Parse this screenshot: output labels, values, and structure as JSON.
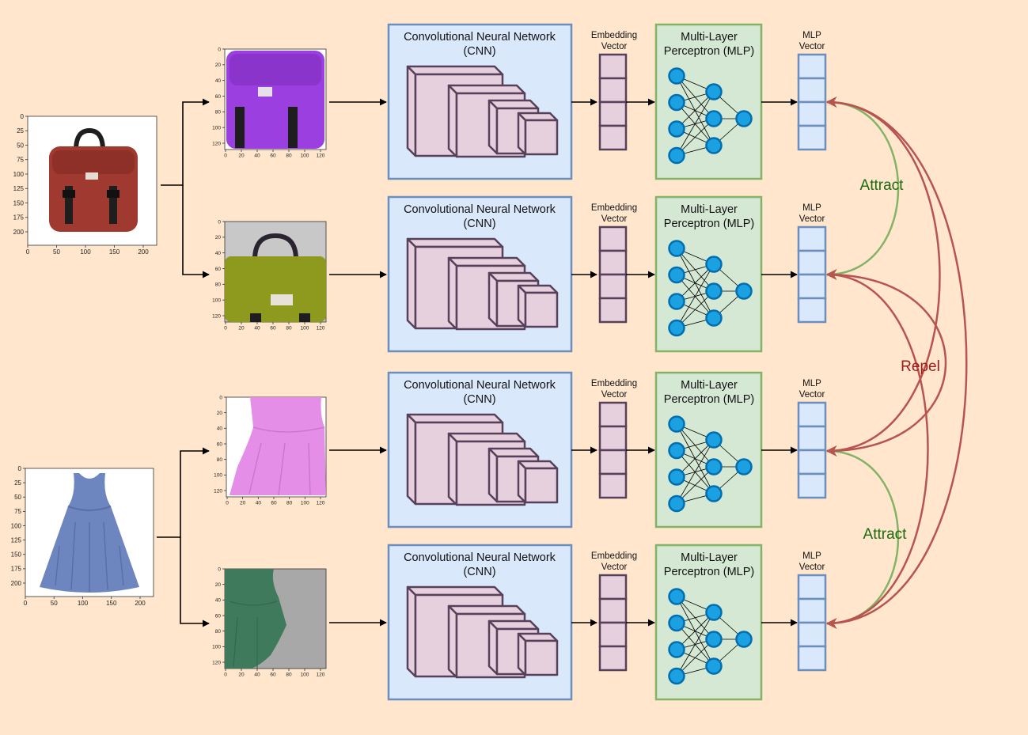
{
  "labels": {
    "cnn_line1": "Convolutional Neural Network",
    "cnn_line2": "(CNN)",
    "embedding_line1": "Embedding",
    "embedding_line2": "Vector",
    "mlp_line1": "Multi-Layer",
    "mlp_line2": "Perceptron (MLP)",
    "mlpvec_line1": "MLP",
    "mlpvec_line2": "Vector",
    "attract": "Attract",
    "repel": "Repel"
  },
  "colors": {
    "background": "#ffe6cc",
    "cnn_fill": "#dae8fc",
    "cnn_stroke": "#6c8ebf",
    "cube_fill": "#e6d0de",
    "cube_stroke": "#56405a",
    "mlp_fill": "#d5e8d4",
    "mlp_stroke": "#82b366",
    "neuron_fill": "#1ba1e2",
    "neuron_stroke": "#006eaf",
    "attract_color": "#82b366",
    "attract_text": "#1d6b0f",
    "repel_color": "#b85450",
    "repel_text": "#9e1a1a"
  },
  "inputs": [
    {
      "name": "backpack",
      "image_color": "#a03a30",
      "xticks": [
        "0",
        "50",
        "100",
        "150",
        "200"
      ],
      "yticks": [
        "0",
        "25",
        "50",
        "75",
        "100",
        "125",
        "150",
        "175",
        "200"
      ]
    },
    {
      "name": "dress",
      "image_color": "#6e86c0",
      "xticks": [
        "0",
        "50",
        "100",
        "150",
        "200"
      ],
      "yticks": [
        "0",
        "25",
        "50",
        "75",
        "100",
        "125",
        "150",
        "175",
        "200"
      ]
    }
  ],
  "augmented_views": [
    {
      "name": "backpack-purple",
      "bg": "#ffffff",
      "color": "#9b3fe0",
      "xticks": [
        "0",
        "20",
        "40",
        "60",
        "80",
        "100",
        "120"
      ],
      "yticks": [
        "0",
        "20",
        "40",
        "60",
        "80",
        "100",
        "120"
      ]
    },
    {
      "name": "backpack-olive",
      "bg": "#c8c8c8",
      "color": "#8e9a1e",
      "xticks": [
        "0",
        "20",
        "40",
        "60",
        "80",
        "100",
        "120"
      ],
      "yticks": [
        "0",
        "20",
        "40",
        "60",
        "80",
        "100",
        "120"
      ]
    },
    {
      "name": "dress-pink",
      "bg": "#ffffff",
      "color": "#e48ee8",
      "xticks": [
        "0",
        "20",
        "40",
        "60",
        "80",
        "100",
        "120"
      ],
      "yticks": [
        "0",
        "20",
        "40",
        "60",
        "80",
        "100",
        "120"
      ]
    },
    {
      "name": "dress-green",
      "bg": "#a8a8a8",
      "color": "#3f7a5c",
      "xticks": [
        "0",
        "20",
        "40",
        "60",
        "80",
        "100",
        "120"
      ],
      "yticks": [
        "0",
        "20",
        "40",
        "60",
        "80",
        "100",
        "120"
      ]
    }
  ]
}
